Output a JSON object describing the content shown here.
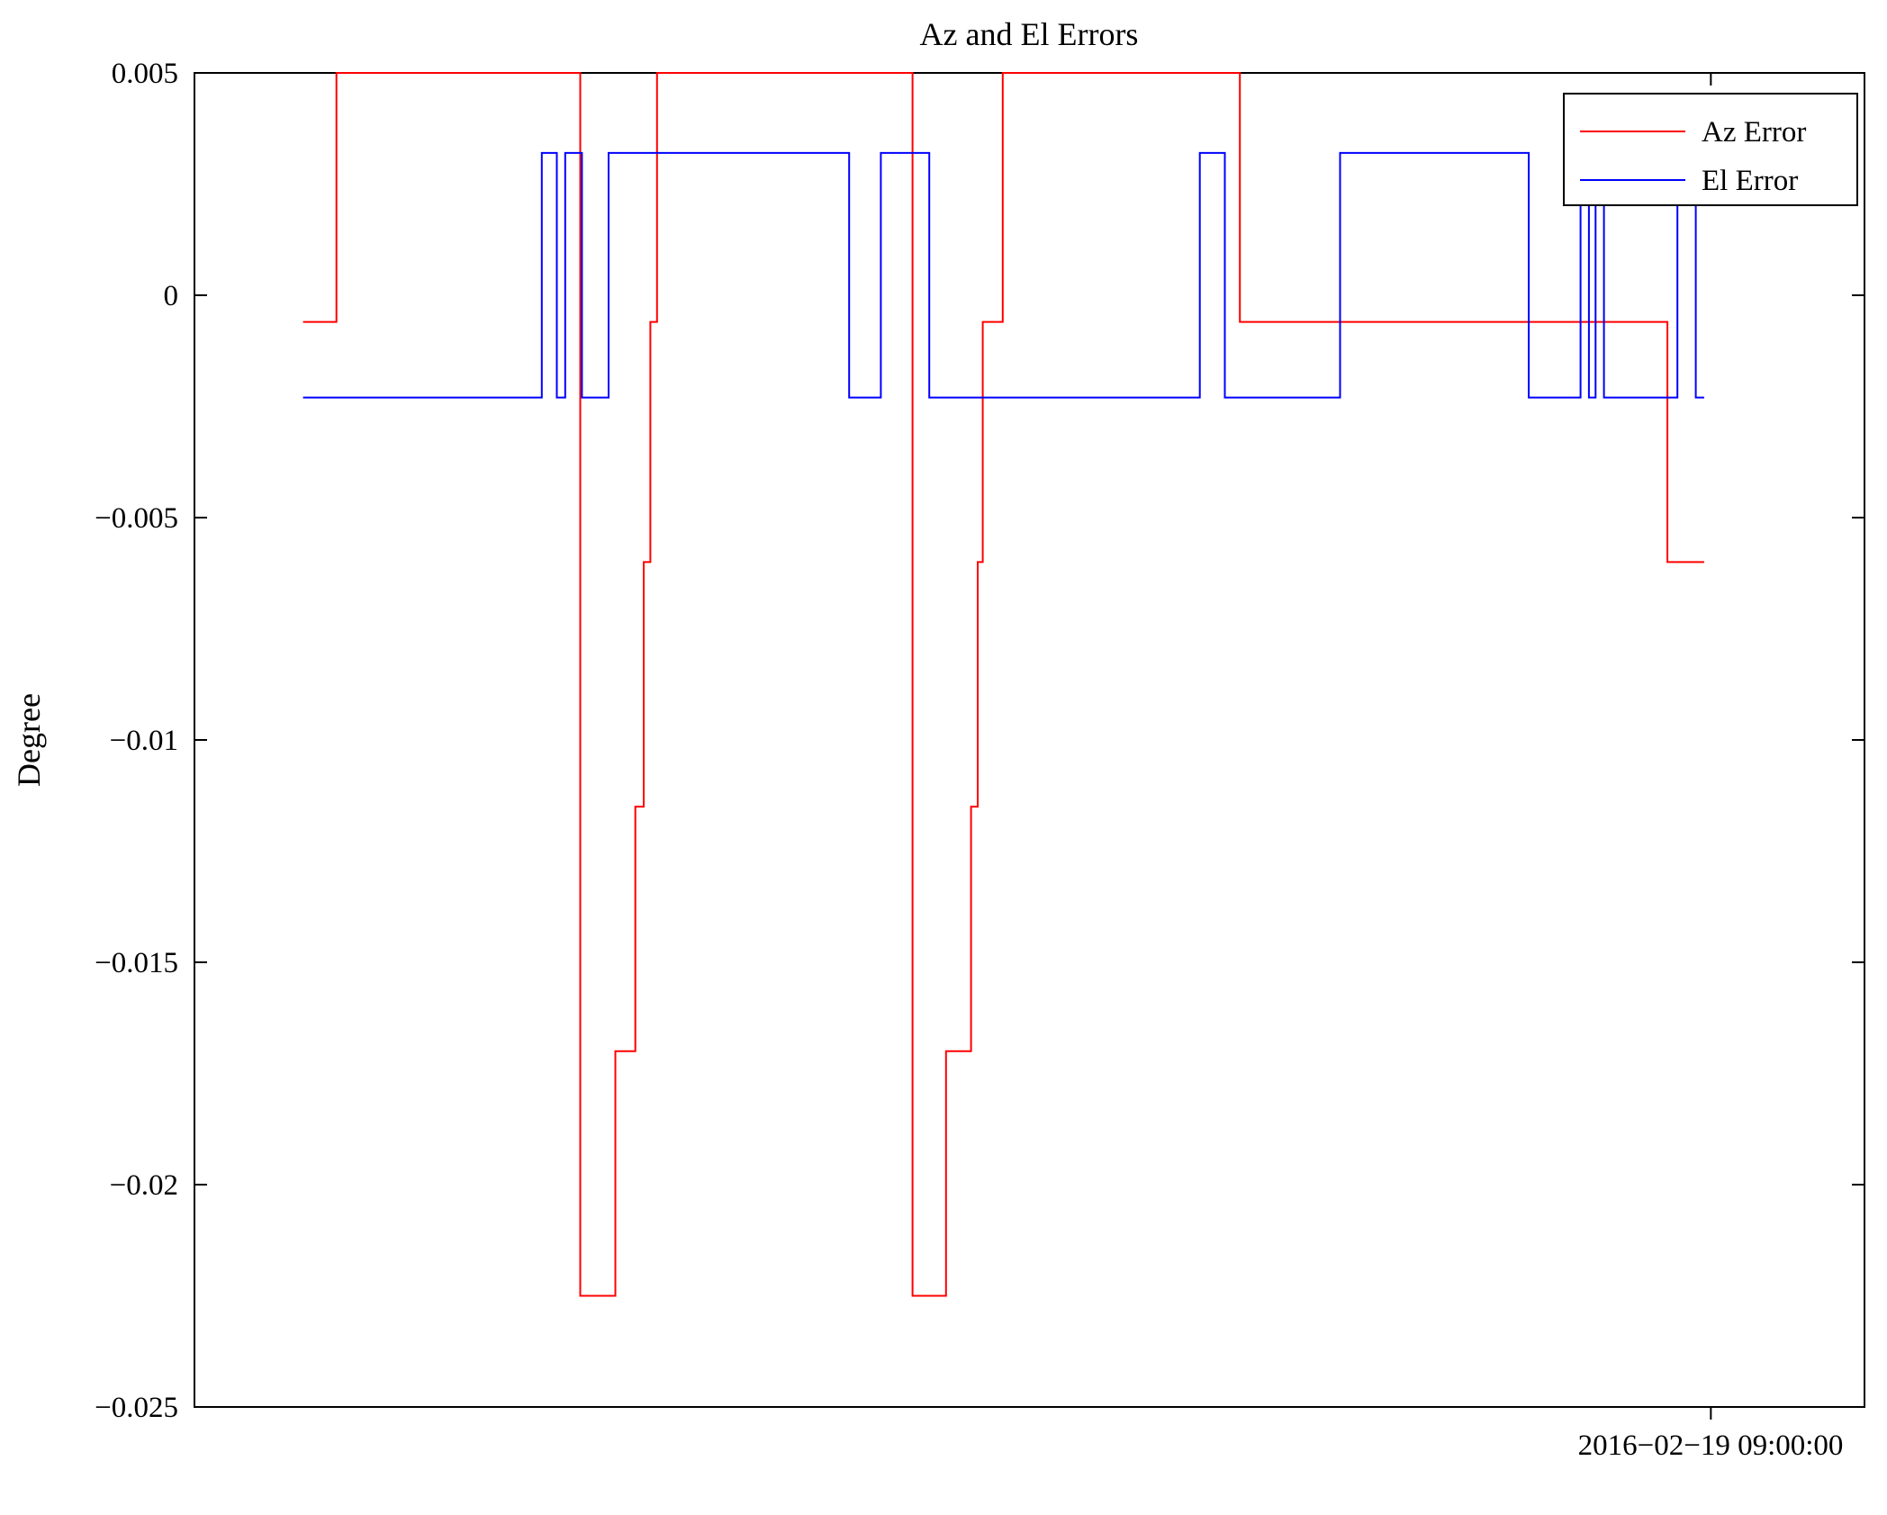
{
  "chart_data": {
    "type": "line",
    "title": "Az and El Errors",
    "xlabel": "",
    "ylabel": "Degree",
    "ylim": [
      -0.025,
      0.005
    ],
    "yticks": [
      0.005,
      0,
      -0.005,
      -0.01,
      -0.015,
      -0.02,
      -0.025
    ],
    "ytick_labels": [
      "0.005",
      "0",
      "−0.005",
      "−0.01",
      "−0.015",
      "−0.02",
      "−0.025"
    ],
    "xtick": {
      "position": 0.908,
      "label": "2016−02−19 09:00:00"
    },
    "x_unit": "fraction-of-axis-width (only one time tick labeled)",
    "grid": "off",
    "background": "#ffffff",
    "frame_color": "#000000",
    "legend": {
      "position": "top-right",
      "entries": [
        {
          "label": "Az Error",
          "color": "#ff0000"
        },
        {
          "label": "El Error",
          "color": "#0000ff"
        }
      ]
    },
    "series": [
      {
        "name": "Az Error",
        "color": "#ff0000",
        "points": [
          [
            0.065,
            -0.0006
          ],
          [
            0.085,
            -0.0006
          ],
          [
            0.085,
            0.005
          ],
          [
            0.231,
            0.005
          ],
          [
            0.231,
            -0.0225
          ],
          [
            0.252,
            -0.0225
          ],
          [
            0.252,
            -0.017
          ],
          [
            0.264,
            -0.017
          ],
          [
            0.264,
            -0.0115
          ],
          [
            0.269,
            -0.0115
          ],
          [
            0.269,
            -0.006
          ],
          [
            0.273,
            -0.006
          ],
          [
            0.273,
            -0.0006
          ],
          [
            0.277,
            -0.0006
          ],
          [
            0.277,
            0.005
          ],
          [
            0.43,
            0.005
          ],
          [
            0.43,
            -0.0225
          ],
          [
            0.45,
            -0.0225
          ],
          [
            0.45,
            -0.017
          ],
          [
            0.465,
            -0.017
          ],
          [
            0.465,
            -0.0115
          ],
          [
            0.469,
            -0.0115
          ],
          [
            0.469,
            -0.006
          ],
          [
            0.472,
            -0.006
          ],
          [
            0.472,
            -0.0006
          ],
          [
            0.484,
            -0.0006
          ],
          [
            0.484,
            0.005
          ],
          [
            0.626,
            0.005
          ],
          [
            0.626,
            -0.0006
          ],
          [
            0.882,
            -0.0006
          ],
          [
            0.882,
            -0.006
          ],
          [
            0.904,
            -0.006
          ]
        ]
      },
      {
        "name": "El Error",
        "color": "#0000ff",
        "points": [
          [
            0.065,
            -0.0023
          ],
          [
            0.208,
            -0.0023
          ],
          [
            0.208,
            0.0032
          ],
          [
            0.217,
            0.0032
          ],
          [
            0.217,
            -0.0023
          ],
          [
            0.222,
            -0.0023
          ],
          [
            0.222,
            0.0032
          ],
          [
            0.232,
            0.0032
          ],
          [
            0.232,
            -0.0023
          ],
          [
            0.248,
            -0.0023
          ],
          [
            0.248,
            0.0032
          ],
          [
            0.392,
            0.0032
          ],
          [
            0.392,
            -0.0023
          ],
          [
            0.411,
            -0.0023
          ],
          [
            0.411,
            0.0032
          ],
          [
            0.44,
            0.0032
          ],
          [
            0.44,
            -0.0023
          ],
          [
            0.602,
            -0.0023
          ],
          [
            0.602,
            0.0032
          ],
          [
            0.617,
            0.0032
          ],
          [
            0.617,
            -0.0023
          ],
          [
            0.686,
            -0.0023
          ],
          [
            0.686,
            0.0032
          ],
          [
            0.799,
            0.0032
          ],
          [
            0.799,
            -0.0023
          ],
          [
            0.83,
            -0.0023
          ],
          [
            0.83,
            0.0032
          ],
          [
            0.835,
            0.0032
          ],
          [
            0.835,
            -0.0023
          ],
          [
            0.839,
            -0.0023
          ],
          [
            0.839,
            0.0032
          ],
          [
            0.844,
            0.0032
          ],
          [
            0.844,
            -0.0023
          ],
          [
            0.888,
            -0.0023
          ],
          [
            0.888,
            0.0032
          ],
          [
            0.899,
            0.0032
          ],
          [
            0.899,
            -0.0023
          ],
          [
            0.904,
            -0.0023
          ]
        ]
      }
    ]
  }
}
